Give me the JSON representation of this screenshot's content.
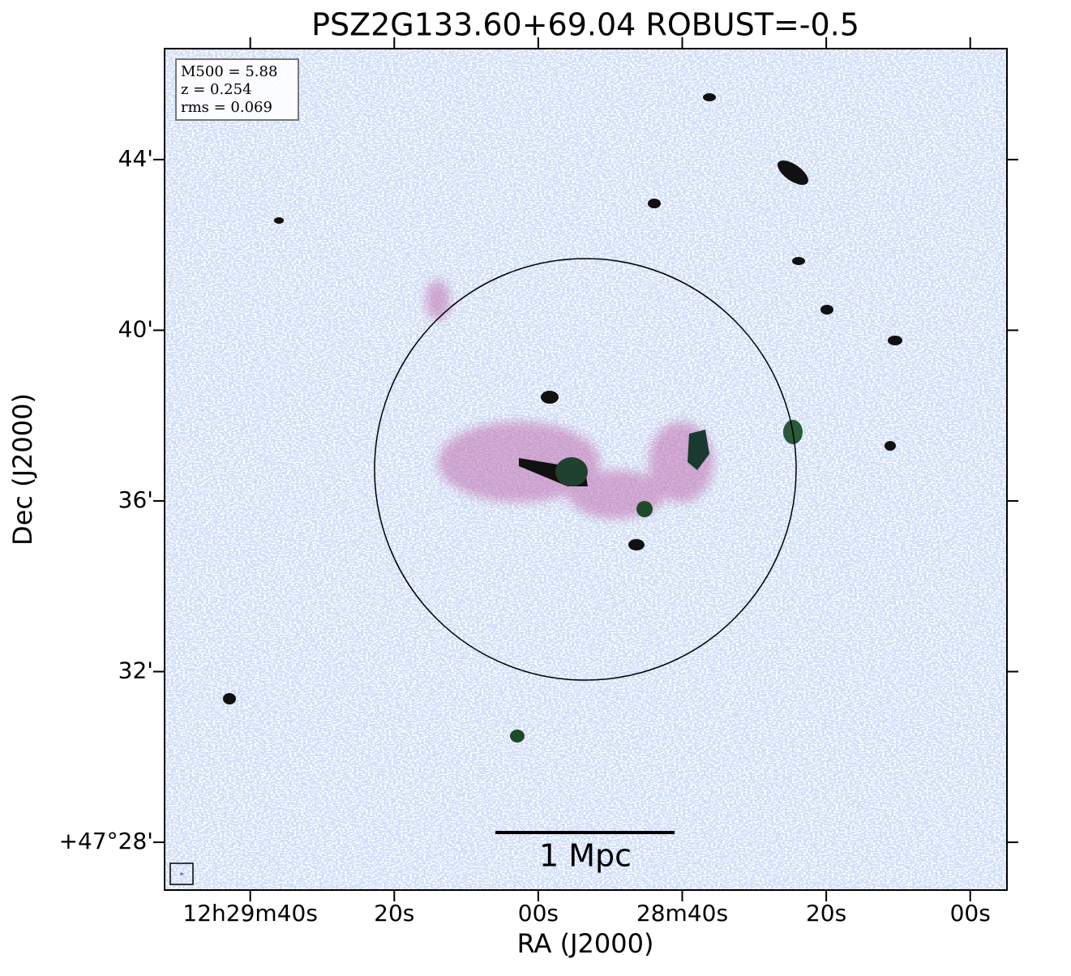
{
  "chart_data": {
    "type": "image",
    "title": "PSZ2G133.60+69.04 ROBUST=-0.5",
    "xlabel": "RA (J2000)",
    "ylabel": "Dec (J2000)",
    "xlim": [
      44991.9,
      44874.9
    ],
    "xticks": [
      {
        "value": 44980,
        "label": "12h29m40s"
      },
      {
        "value": 44960,
        "label": "20s"
      },
      {
        "value": 44940,
        "label": "00s"
      },
      {
        "value": 44920,
        "label": "28m40s"
      },
      {
        "value": 44900,
        "label": "20s"
      },
      {
        "value": 44880,
        "label": "00s"
      }
    ],
    "ylim": [
      26.88,
      46.6
    ],
    "yticks": [
      {
        "value": 28,
        "label": "+47°28'"
      },
      {
        "value": 32,
        "label": "32'"
      },
      {
        "value": 36,
        "label": "36'"
      },
      {
        "value": 40,
        "label": "40'"
      },
      {
        "value": 44,
        "label": "44'"
      }
    ],
    "info": [
      "M500 = 5.88",
      "z = 0.254",
      "rms = 0.069"
    ],
    "scalebar_label": "1 Mpc"
  }
}
